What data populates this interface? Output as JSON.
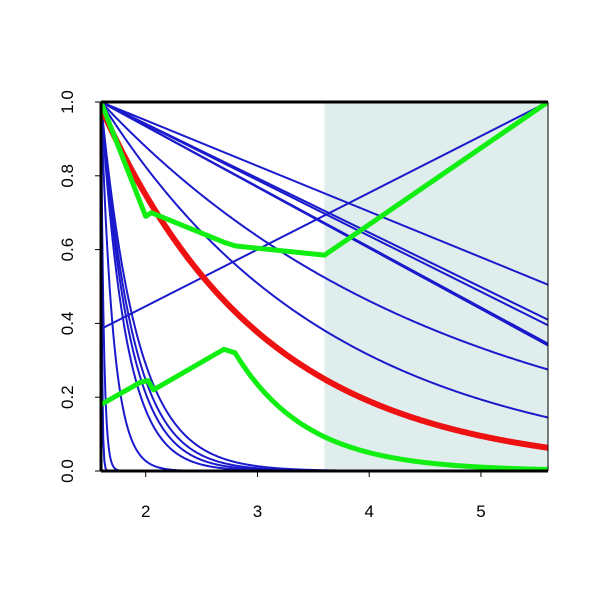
{
  "chart_data": {
    "type": "line",
    "title": "",
    "xlabel": "",
    "ylabel": "",
    "xlim": [
      1.6,
      5.6
    ],
    "ylim": [
      0,
      1
    ],
    "x_ticks": [
      2,
      3,
      4,
      5
    ],
    "x_tick_labels": [
      "2",
      "3",
      "4",
      "5"
    ],
    "y_ticks": [
      0,
      0.2,
      0.4,
      0.6,
      0.8,
      1
    ],
    "y_tick_labels": [
      "0.0",
      "0.2",
      "0.4",
      "0.6",
      "0.8",
      "1.0"
    ],
    "grid": false,
    "shaded_region": {
      "x_from": 3.6,
      "x_to": 5.6,
      "color": "#e0eded"
    },
    "colors": {
      "blue": "#1a1acc",
      "red": "#ee1111",
      "green": "#11ee11",
      "axis": "#000000"
    },
    "series": [
      {
        "color": "blue",
        "kind": "line",
        "from": [
          1.6,
          1.0
        ],
        "to": [
          5.6,
          0.505
        ]
      },
      {
        "color": "blue",
        "kind": "line",
        "from": [
          1.6,
          1.0
        ],
        "to": [
          5.6,
          0.41
        ]
      },
      {
        "color": "blue",
        "kind": "line",
        "from": [
          1.6,
          1.0
        ],
        "to": [
          5.6,
          0.395
        ]
      },
      {
        "color": "blue",
        "kind": "line",
        "from": [
          1.6,
          1.0
        ],
        "to": [
          5.6,
          0.345
        ]
      },
      {
        "color": "blue",
        "kind": "line",
        "from": [
          1.6,
          1.0
        ],
        "to": [
          5.6,
          0.34
        ]
      },
      {
        "color": "blue",
        "kind": "exp",
        "start": 1.0,
        "end": 0.275
      },
      {
        "color": "blue",
        "kind": "exp",
        "start": 1.0,
        "end": 0.145
      },
      {
        "color": "blue",
        "kind": "line",
        "from": [
          1.6,
          0.385
        ],
        "to": [
          5.6,
          1.0
        ]
      },
      {
        "color": "blue",
        "kind": "decay",
        "start": 1.0,
        "k": 3.1
      },
      {
        "color": "blue",
        "kind": "decay",
        "start": 1.0,
        "k": 3.5
      },
      {
        "color": "blue",
        "kind": "decay",
        "start": 1.0,
        "k": 3.9
      },
      {
        "color": "blue",
        "kind": "decay",
        "start": 1.0,
        "k": 4.5
      },
      {
        "color": "blue",
        "kind": "decay",
        "start": 1.0,
        "k": 9.0
      },
      {
        "color": "blue",
        "kind": "decay",
        "start": 1.0,
        "k": 40
      },
      {
        "color": "blue",
        "kind": "decay",
        "start": 1.0,
        "k": 120
      },
      {
        "color": "red",
        "kind": "exp",
        "start": 0.985,
        "end": 0.063,
        "width": 6
      },
      {
        "color": "green",
        "kind": "points",
        "width": 5,
        "x": [
          1.6,
          2.0,
          2.05,
          2.7,
          2.8,
          3.6,
          5.6
        ],
        "y": [
          1.0,
          0.69,
          0.7,
          0.62,
          0.61,
          0.585,
          1.0
        ]
      },
      {
        "color": "green",
        "kind": "greenlow",
        "width": 5
      }
    ]
  }
}
